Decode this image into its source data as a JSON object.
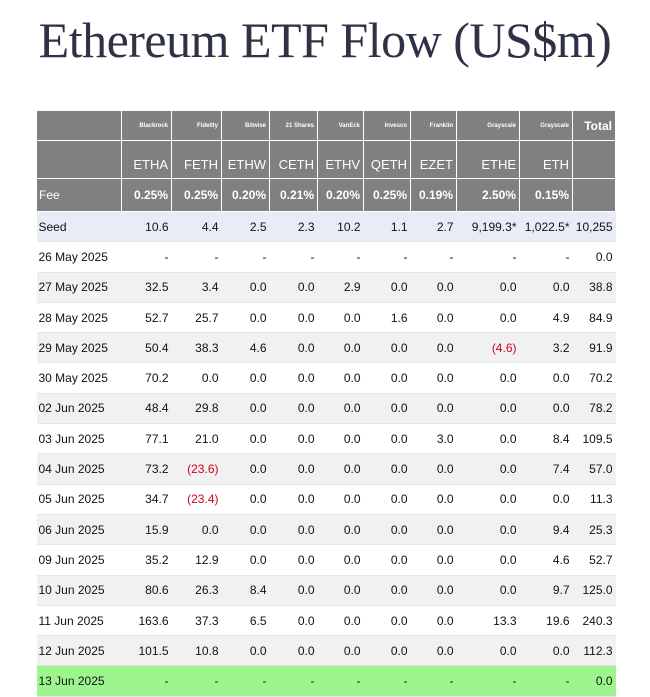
{
  "title": "Ethereum ETF Flow (US$m)",
  "issuers": [
    "Blackrock",
    "Fidelity",
    "Bitwise",
    "21 Shares",
    "VanEck",
    "Invesco",
    "Franklin",
    "Grayscale",
    "Grayscale"
  ],
  "total_label": "Total",
  "tickers": [
    "ETHA",
    "FETH",
    "ETHW",
    "CETH",
    "ETHV",
    "QETH",
    "EZET",
    "ETHE",
    "ETH"
  ],
  "fee_label": "Fee",
  "fees": [
    "0.25%",
    "0.25%",
    "0.20%",
    "0.21%",
    "0.20%",
    "0.25%",
    "0.19%",
    "2.50%",
    "0.15%"
  ],
  "rows": [
    {
      "label": "Seed",
      "values": [
        "10.6",
        "4.4",
        "2.5",
        "2.3",
        "10.2",
        "1.1",
        "2.7",
        "9,199.3*",
        "1,022.5*"
      ],
      "total": "10,255"
    },
    {
      "label": "26 May 2025",
      "values": [
        "-",
        "-",
        "-",
        "-",
        "-",
        "-",
        "-",
        "-",
        "-"
      ],
      "total": "0.0"
    },
    {
      "label": "27 May 2025",
      "values": [
        "32.5",
        "3.4",
        "0.0",
        "0.0",
        "2.9",
        "0.0",
        "0.0",
        "0.0",
        "0.0"
      ],
      "total": "38.8"
    },
    {
      "label": "28 May 2025",
      "values": [
        "52.7",
        "25.7",
        "0.0",
        "0.0",
        "0.0",
        "1.6",
        "0.0",
        "0.0",
        "4.9"
      ],
      "total": "84.9"
    },
    {
      "label": "29 May 2025",
      "values": [
        "50.4",
        "38.3",
        "4.6",
        "0.0",
        "0.0",
        "0.0",
        "0.0",
        "(4.6)",
        "3.2"
      ],
      "total": "91.9"
    },
    {
      "label": "30 May 2025",
      "values": [
        "70.2",
        "0.0",
        "0.0",
        "0.0",
        "0.0",
        "0.0",
        "0.0",
        "0.0",
        "0.0"
      ],
      "total": "70.2"
    },
    {
      "label": "02 Jun 2025",
      "values": [
        "48.4",
        "29.8",
        "0.0",
        "0.0",
        "0.0",
        "0.0",
        "0.0",
        "0.0",
        "0.0"
      ],
      "total": "78.2"
    },
    {
      "label": "03 Jun 2025",
      "values": [
        "77.1",
        "21.0",
        "0.0",
        "0.0",
        "0.0",
        "0.0",
        "3.0",
        "0.0",
        "8.4"
      ],
      "total": "109.5"
    },
    {
      "label": "04 Jun 2025",
      "values": [
        "73.2",
        "(23.6)",
        "0.0",
        "0.0",
        "0.0",
        "0.0",
        "0.0",
        "0.0",
        "7.4"
      ],
      "total": "57.0"
    },
    {
      "label": "05 Jun 2025",
      "values": [
        "34.7",
        "(23.4)",
        "0.0",
        "0.0",
        "0.0",
        "0.0",
        "0.0",
        "0.0",
        "0.0"
      ],
      "total": "11.3"
    },
    {
      "label": "06 Jun 2025",
      "values": [
        "15.9",
        "0.0",
        "0.0",
        "0.0",
        "0.0",
        "0.0",
        "0.0",
        "0.0",
        "9.4"
      ],
      "total": "25.3"
    },
    {
      "label": "09 Jun 2025",
      "values": [
        "35.2",
        "12.9",
        "0.0",
        "0.0",
        "0.0",
        "0.0",
        "0.0",
        "0.0",
        "4.6"
      ],
      "total": "52.7"
    },
    {
      "label": "10 Jun 2025",
      "values": [
        "80.6",
        "26.3",
        "8.4",
        "0.0",
        "0.0",
        "0.0",
        "0.0",
        "0.0",
        "9.7"
      ],
      "total": "125.0"
    },
    {
      "label": "11 Jun 2025",
      "values": [
        "163.6",
        "37.3",
        "6.5",
        "0.0",
        "0.0",
        "0.0",
        "0.0",
        "13.3",
        "19.6"
      ],
      "total": "240.3"
    },
    {
      "label": "12 Jun 2025",
      "values": [
        "101.5",
        "10.8",
        "0.0",
        "0.0",
        "0.0",
        "0.0",
        "0.0",
        "0.0",
        "0.0"
      ],
      "total": "112.3"
    },
    {
      "label": "13 Jun 2025",
      "values": [
        "-",
        "-",
        "-",
        "-",
        "-",
        "-",
        "-",
        "-",
        "-"
      ],
      "total": "0.0"
    }
  ]
}
